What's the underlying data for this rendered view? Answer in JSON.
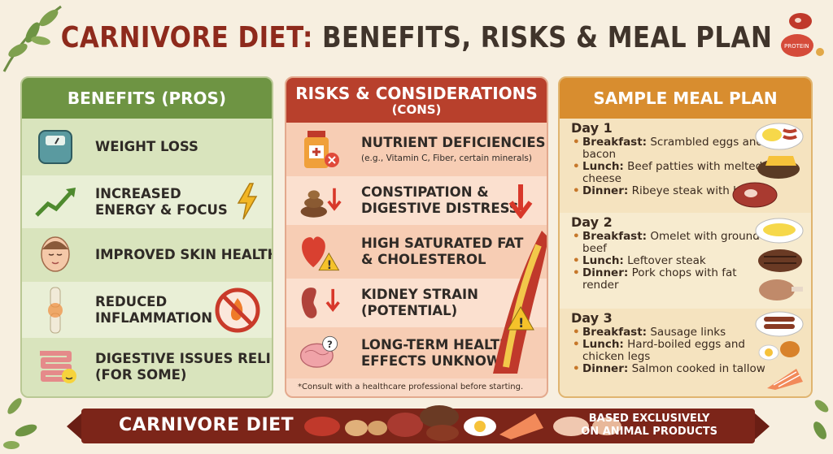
{
  "title": {
    "part1": "CARNIVORE DIET:",
    "part2": "BENEFITS, RISKS & MEAL PLAN"
  },
  "benefits": {
    "heading": "BENEFITS (PROS)",
    "items": [
      {
        "line1": "WEIGHT LOSS",
        "line2": "",
        "icon": "scale-icon"
      },
      {
        "line1": "INCREASED",
        "line2": "ENERGY & FOCUS",
        "icon": "trend-up-icon"
      },
      {
        "line1": "IMPROVED SKIN HEALTH",
        "line2": "",
        "icon": "face-icon"
      },
      {
        "line1": "REDUCED",
        "line2": "INFLAMMATION",
        "icon": "joint-icon"
      },
      {
        "line1": "DIGESTIVE ISSUES RELIEF",
        "line2": "(FOR SOME)",
        "icon": "intestine-icon"
      }
    ]
  },
  "risks": {
    "heading": "RISKS & CONSIDERATIONS",
    "subheading": "(CONS)",
    "items": [
      {
        "line1": "NUTRIENT DEFICIENCIES",
        "line2": "",
        "sub": "(e.g., Vitamin C, Fiber, certain minerals)",
        "icon": "supplement-bottle-icon"
      },
      {
        "line1": "CONSTIPATION &",
        "line2": "DIGESTIVE DISTRESS",
        "sub": "",
        "icon": "poop-icon"
      },
      {
        "line1": "HIGH SATURATED FAT",
        "line2": "& CHOLESTEROL",
        "sub": "",
        "icon": "heart-icon"
      },
      {
        "line1": "KIDNEY STRAIN",
        "line2": "(POTENTIAL)",
        "sub": "",
        "icon": "kidney-icon"
      },
      {
        "line1": "LONG-TERM HEALTH",
        "line2": "EFFECTS UNKNOWN",
        "sub": "",
        "icon": "brain-icon"
      }
    ],
    "note": "*Consult with a healthcare professional before starting."
  },
  "meals": {
    "heading": "SAMPLE MEAL PLAN",
    "days": [
      {
        "title": "Day 1",
        "items": [
          {
            "label": "Breakfast:",
            "text": "Scrambled eggs and bacon"
          },
          {
            "label": "Lunch:",
            "text": "Beef patties with melted cheese"
          },
          {
            "label": "Dinner:",
            "text": "Ribeye steak with butter"
          }
        ]
      },
      {
        "title": "Day 2",
        "items": [
          {
            "label": "Breakfast:",
            "text": "Omelet with ground beef"
          },
          {
            "label": "Lunch:",
            "text": "Leftover steak"
          },
          {
            "label": "Dinner:",
            "text": "Pork chops with fat render"
          }
        ]
      },
      {
        "title": "Day 3",
        "items": [
          {
            "label": "Breakfast:",
            "text": "Sausage links"
          },
          {
            "label": "Lunch:",
            "text": "Hard-boiled eggs and chicken legs"
          },
          {
            "label": "Dinner:",
            "text": "Salmon cooked in tallow"
          }
        ]
      }
    ]
  },
  "footer": {
    "left": "CARNIVORE DIET",
    "right_line1": "BASED EXCLUSIVELY",
    "right_line2": "ON ANIMAL PRODUCTS"
  },
  "decor": {
    "badge": "PROTEIN"
  },
  "colors": {
    "title_red": "#8e2a1c",
    "benefits_green": "#6e9443",
    "risks_red": "#b8402c",
    "meals_orange": "#d88d2f",
    "footer_maroon": "#7c2519"
  }
}
